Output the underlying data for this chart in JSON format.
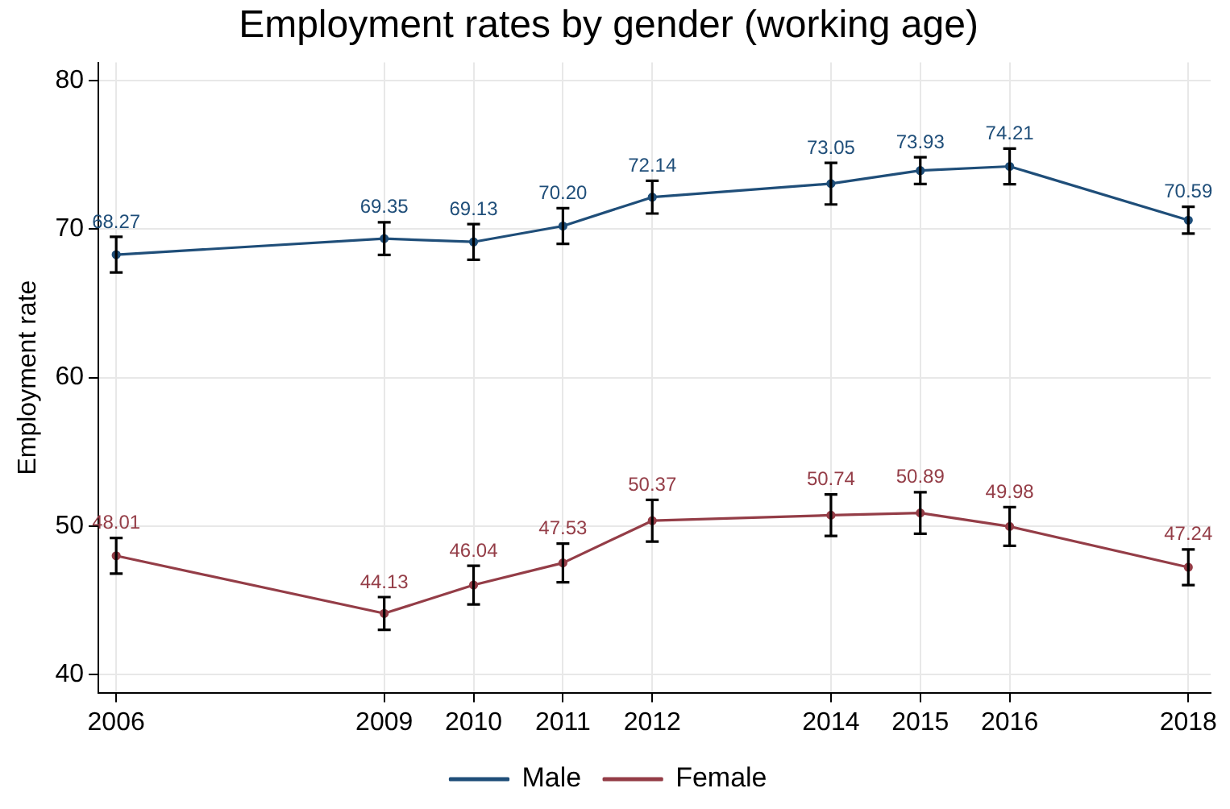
{
  "chart_data": {
    "type": "line",
    "title": "Employment rates by gender (working age)",
    "ylabel": "Employment rate",
    "x": [
      2006,
      2009,
      2010,
      2011,
      2012,
      2014,
      2015,
      2016,
      2018
    ],
    "series": [
      {
        "name": "Male",
        "color": "#1f4e79",
        "values": [
          68.27,
          69.35,
          69.13,
          70.2,
          72.14,
          73.05,
          73.93,
          74.21,
          70.59
        ],
        "value_labels": [
          "68.27",
          "69.35",
          "69.13",
          "70.20",
          "72.14",
          "73.05",
          "73.93",
          "74.21",
          "70.59"
        ],
        "errors": [
          1.2,
          1.1,
          1.2,
          1.2,
          1.1,
          1.4,
          0.9,
          1.2,
          0.9
        ]
      },
      {
        "name": "Female",
        "color": "#943d47",
        "values": [
          48.01,
          44.13,
          46.04,
          47.53,
          50.37,
          50.74,
          50.89,
          49.98,
          47.24
        ],
        "value_labels": [
          "48.01",
          "44.13",
          "46.04",
          "47.53",
          "50.37",
          "50.74",
          "50.89",
          "49.98",
          "47.24"
        ],
        "errors": [
          1.2,
          1.1,
          1.3,
          1.3,
          1.4,
          1.4,
          1.4,
          1.3,
          1.2
        ]
      }
    ],
    "xlim": [
      2005.8,
      2018.25
    ],
    "xticks": [
      2006,
      2009,
      2010,
      2011,
      2012,
      2014,
      2015,
      2016,
      2018
    ],
    "ylim": [
      38.8,
      81.2
    ],
    "yticks": [
      40,
      50,
      60,
      70,
      80
    ],
    "grid": true,
    "legend": "bottom",
    "marker": "circle"
  }
}
